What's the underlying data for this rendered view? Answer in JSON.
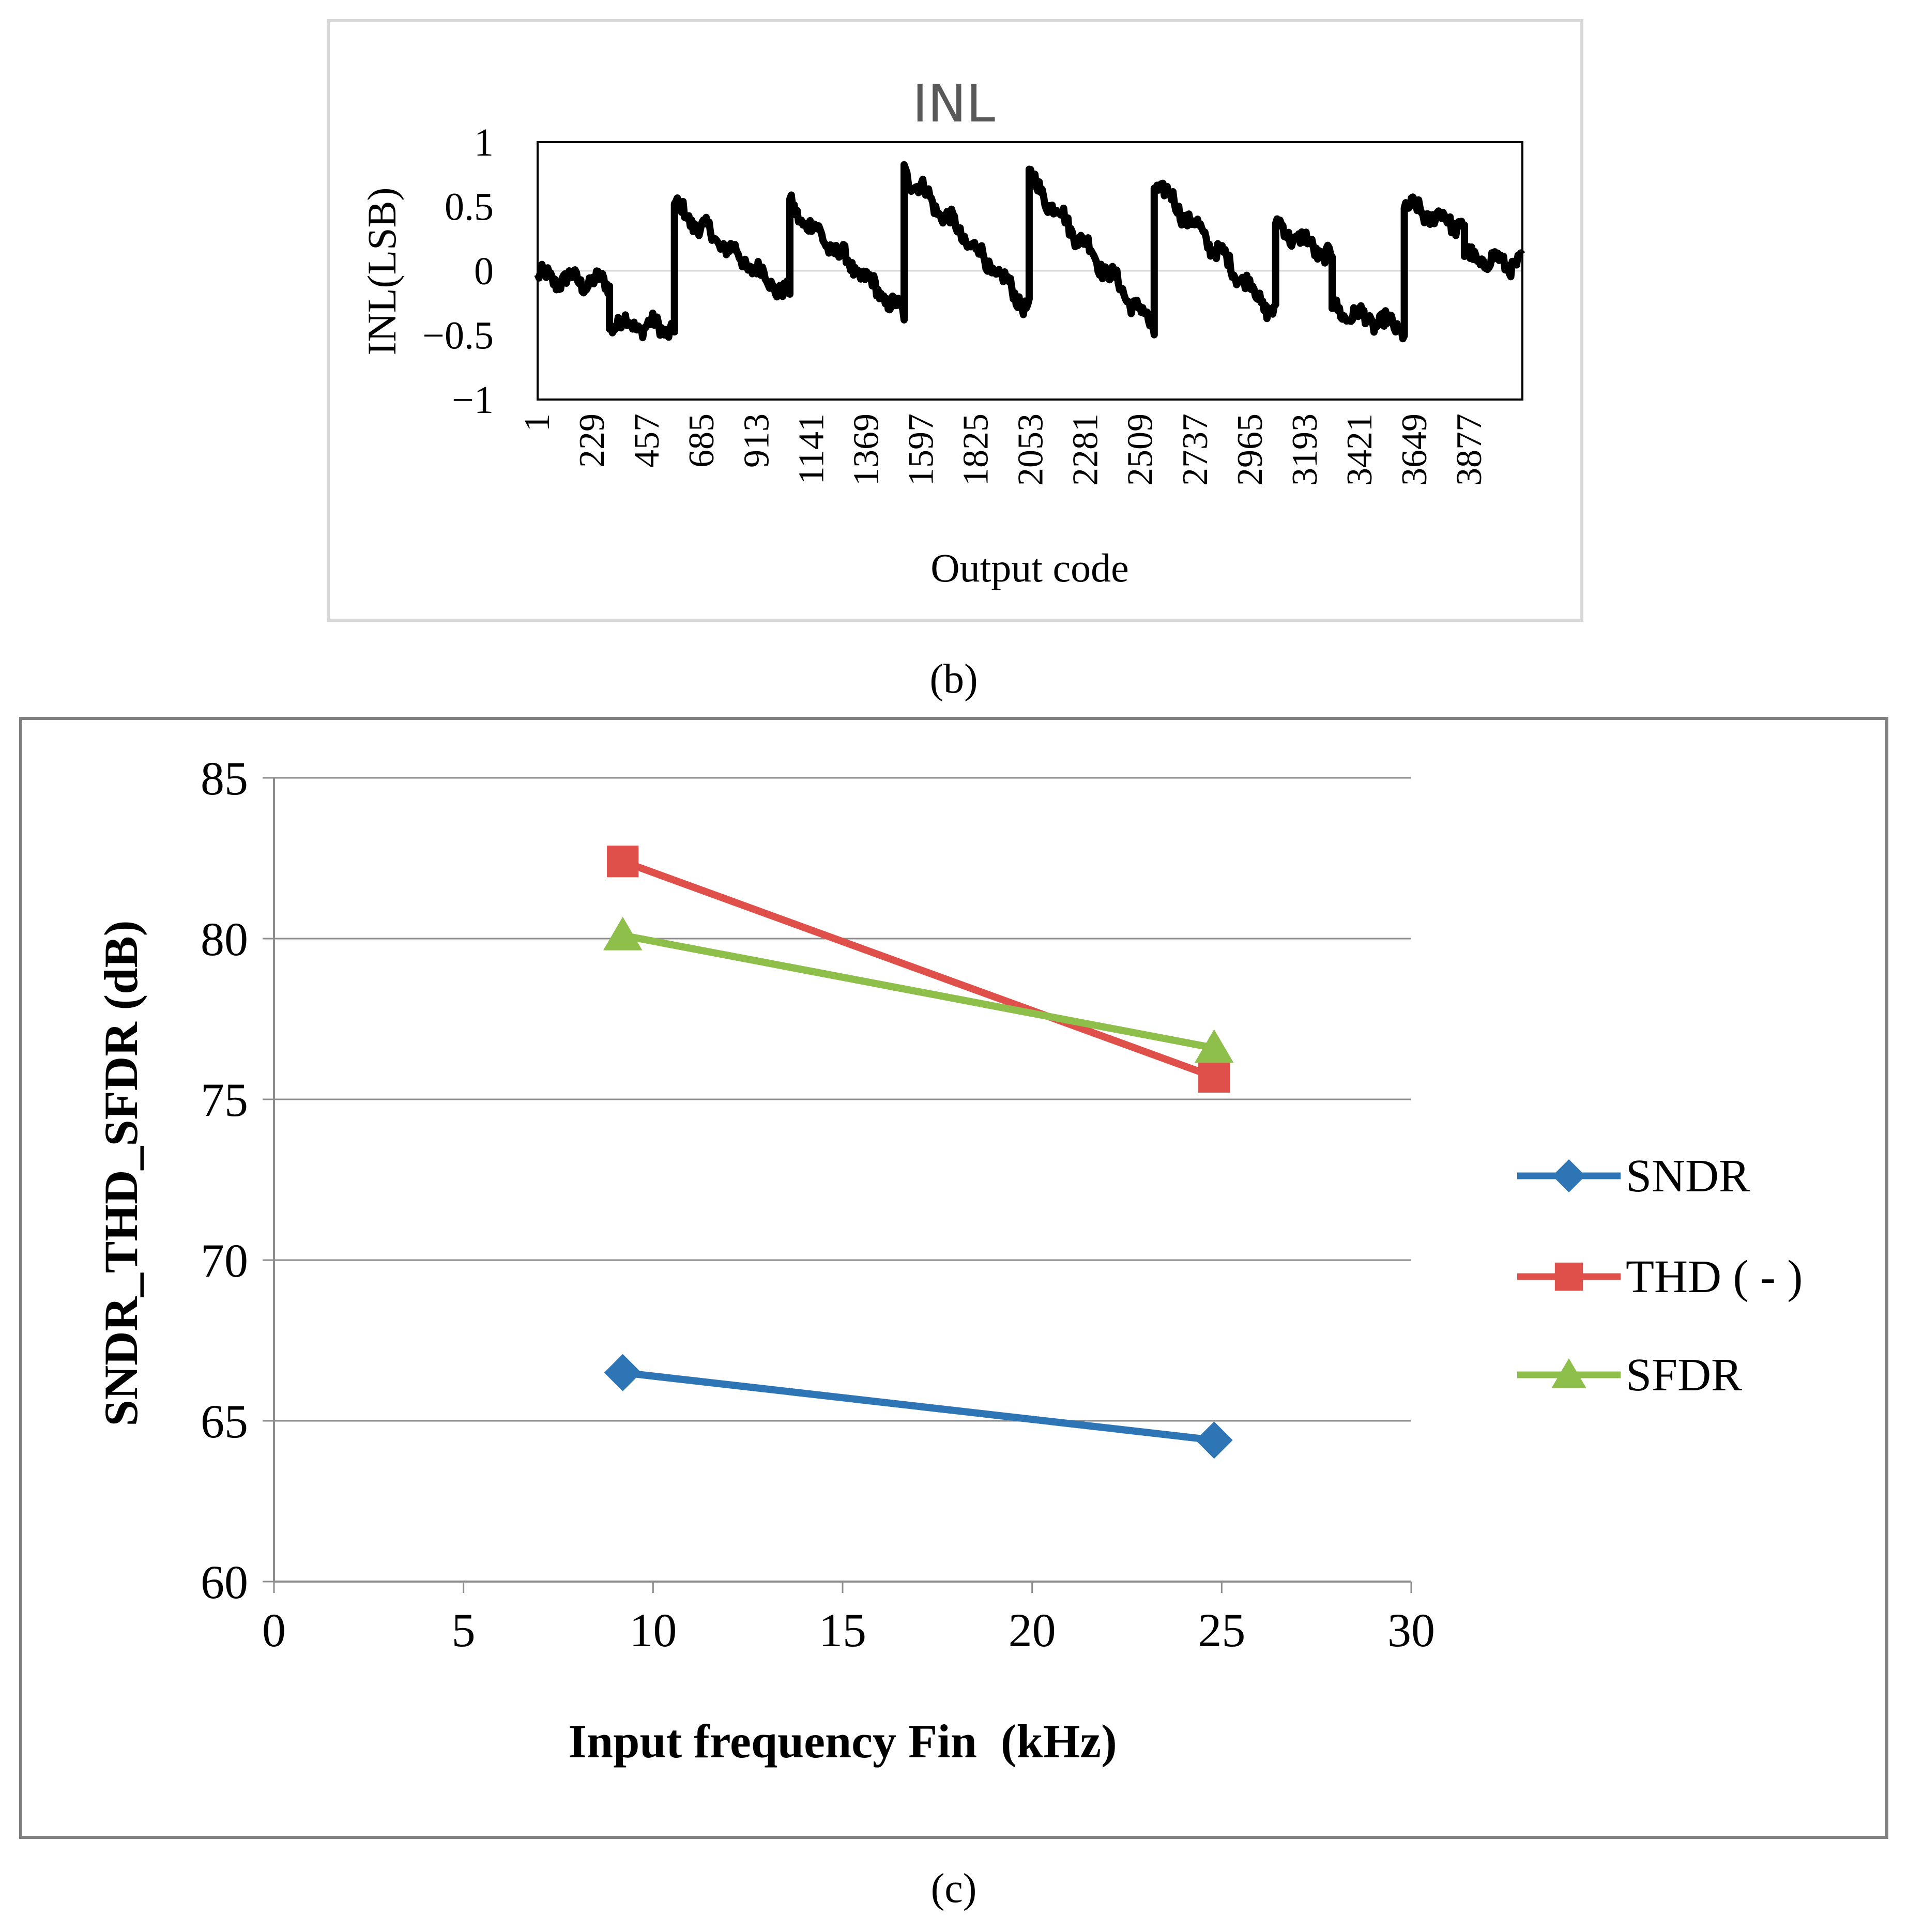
{
  "chart_data": [
    {
      "id": "inl",
      "type": "line",
      "title": "INL",
      "xlabel": "Output code",
      "ylabel": "INL(LSB)",
      "ylim": [
        -1,
        1
      ],
      "yticks": [
        "1",
        "0.5",
        "0",
        "−0.5",
        "−1"
      ],
      "ytick_values": [
        1,
        0.5,
        0,
        -0.5,
        -1
      ],
      "categories": [
        "1",
        "229",
        "457",
        "685",
        "913",
        "1141",
        "1369",
        "1597",
        "1825",
        "2053",
        "2281",
        "2509",
        "2737",
        "2965",
        "3193",
        "3421",
        "3649",
        "3877"
      ],
      "xlim": [
        1,
        4096
      ],
      "series": [
        {
          "name": "INL",
          "color": "#000000",
          "segments": [
            {
              "x0": 1,
              "x1": 300,
              "y0": -0.05,
              "y1": -0.1
            },
            {
              "x0": 300,
              "x1": 570,
              "y0": -0.4,
              "y1": -0.45
            },
            {
              "x0": 570,
              "x1": 1050,
              "y0": 0.5,
              "y1": -0.2
            },
            {
              "x0": 1050,
              "x1": 1525,
              "y0": 0.5,
              "y1": -0.35
            },
            {
              "x0": 1525,
              "x1": 2045,
              "y0": 0.78,
              "y1": -0.3
            },
            {
              "x0": 2045,
              "x1": 2565,
              "y0": 0.73,
              "y1": -0.45
            },
            {
              "x0": 2565,
              "x1": 3070,
              "y0": 0.7,
              "y1": -0.35
            },
            {
              "x0": 3070,
              "x1": 3305,
              "y0": 0.35,
              "y1": 0.1
            },
            {
              "x0": 3305,
              "x1": 3605,
              "y0": -0.3,
              "y1": -0.45
            },
            {
              "x0": 3605,
              "x1": 3855,
              "y0": 0.5,
              "y1": 0.35
            },
            {
              "x0": 3855,
              "x1": 4096,
              "y0": 0.1,
              "y1": 0.05
            }
          ]
        }
      ],
      "caption": "(b)"
    },
    {
      "id": "dynamic",
      "type": "line",
      "xlabel": "Input frequency Fin  (kHz)",
      "ylabel": "SNDR_THD_SFDR (dB)",
      "xlim": [
        0,
        30
      ],
      "ylim": [
        60,
        85
      ],
      "xticks": [
        "0",
        "5",
        "10",
        "15",
        "20",
        "25",
        "30"
      ],
      "xtick_values": [
        0,
        5,
        10,
        15,
        20,
        25,
        30
      ],
      "yticks": [
        "60",
        "65",
        "70",
        "75",
        "80",
        "85"
      ],
      "ytick_values": [
        60,
        65,
        70,
        75,
        80,
        85
      ],
      "grid": true,
      "legend": "right",
      "series": [
        {
          "name": "SNDR",
          "marker": "diamond",
          "color": "#2E75B6",
          "x": [
            9.2,
            24.8
          ],
          "values": [
            66.5,
            64.4
          ]
        },
        {
          "name": "THD ( - )",
          "marker": "square",
          "color": "#E0504B",
          "x": [
            9.2,
            24.8
          ],
          "values": [
            82.4,
            75.7
          ]
        },
        {
          "name": "SFDR",
          "marker": "triangle",
          "color": "#8DBF4A",
          "x": [
            9.2,
            24.8
          ],
          "values": [
            80.1,
            76.6
          ]
        }
      ],
      "caption": "(c)"
    }
  ]
}
